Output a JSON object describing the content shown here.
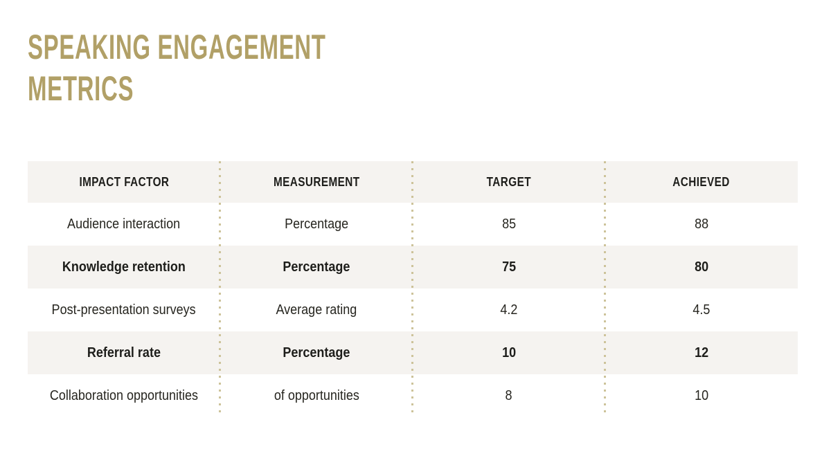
{
  "title": {
    "line1": "SPEAKING ENGAGEMENT",
    "line2": "METRICS"
  },
  "colors": {
    "accent_gold": "#b1a067",
    "dotted_line": "#cdc39a",
    "stripe": "#f5f3f0",
    "text_dark": "#26251f",
    "text_heading": "#1d1d1a",
    "background": "#ffffff"
  },
  "table": {
    "columns": [
      "IMPACT FACTOR",
      "MEASUREMENT",
      "TARGET",
      "ACHIEVED"
    ],
    "rows": [
      {
        "impact_factor": "Audience interaction",
        "measurement": "Percentage",
        "target": "85",
        "achieved": "88",
        "emphasis": false
      },
      {
        "impact_factor": "Knowledge retention",
        "measurement": "Percentage",
        "target": "75",
        "achieved": "80",
        "emphasis": true
      },
      {
        "impact_factor": "Post-presentation surveys",
        "measurement": "Average rating",
        "target": "4.2",
        "achieved": "4.5",
        "emphasis": false
      },
      {
        "impact_factor": "Referral rate",
        "measurement": "Percentage",
        "target": "10",
        "achieved": "12",
        "emphasis": true
      },
      {
        "impact_factor": "Collaboration opportunities",
        "measurement": "of opportunities",
        "target": "8",
        "achieved": "10",
        "emphasis": false
      }
    ]
  },
  "chart_data": {
    "type": "table",
    "title": "Speaking Engagement Metrics",
    "columns": [
      "Impact factor",
      "Measurement",
      "Target",
      "Achieved"
    ],
    "rows": [
      [
        "Audience interaction",
        "Percentage",
        85,
        88
      ],
      [
        "Knowledge retention",
        "Percentage",
        75,
        80
      ],
      [
        "Post-presentation surveys",
        "Average rating",
        4.2,
        4.5
      ],
      [
        "Referral rate",
        "Percentage",
        10,
        12
      ],
      [
        "Collaboration opportunities",
        "of opportunities",
        8,
        10
      ]
    ],
    "layout_hints": {
      "striped_rows": "header and rows 2,4 shaded; shaded data rows bold",
      "column_separators": "gold dotted vertical lines",
      "text_alignment": "center"
    }
  }
}
